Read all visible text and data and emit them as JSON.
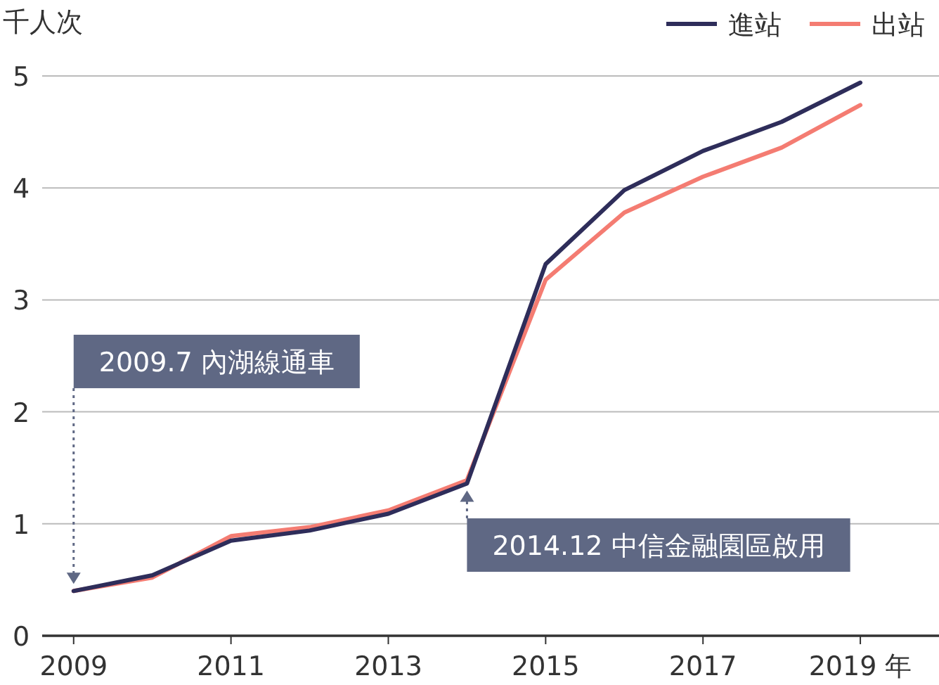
{
  "chart_data": {
    "type": "line",
    "ylabel": "千人次",
    "x": [
      2009,
      2010,
      2011,
      2012,
      2013,
      2014,
      2015,
      2016,
      2017,
      2018,
      2019
    ],
    "series": [
      {
        "name": "進站",
        "color": "#2e2d5a",
        "values": [
          0.4,
          0.54,
          0.85,
          0.94,
          1.09,
          1.36,
          3.32,
          3.98,
          4.33,
          4.59,
          4.94
        ]
      },
      {
        "name": "出站",
        "color": "#f47c72",
        "values": [
          0.4,
          0.52,
          0.89,
          0.97,
          1.12,
          1.39,
          3.18,
          3.78,
          4.1,
          4.36,
          4.74
        ]
      }
    ],
    "xlim": [
      2008.6,
      2020
    ],
    "xticks": [
      2009,
      2011,
      2013,
      2015,
      {
        "value": 2017,
        "label": "2017"
      },
      {
        "value": 2019,
        "label": "2019 年"
      }
    ],
    "ylim": [
      0,
      5
    ],
    "yticks": [
      0,
      1,
      2,
      3,
      4,
      5
    ],
    "grid": "y",
    "legend": "top right",
    "marker": "none",
    "line_style": "solid",
    "annotations": [
      {
        "text": "2009.7 內湖線通車",
        "x": 2009,
        "y": 0.4
      },
      {
        "text": "2014.12 中信金融園區啟用",
        "x": 2014,
        "y": 1.36
      }
    ]
  }
}
